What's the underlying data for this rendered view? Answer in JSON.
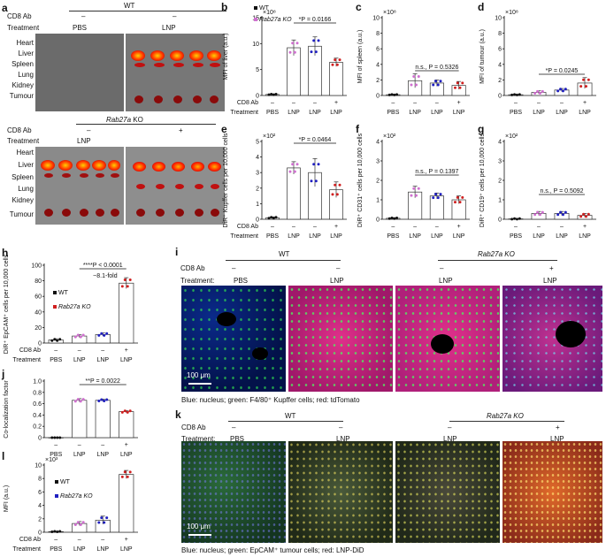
{
  "panels": {
    "a": "a",
    "b": "b",
    "c": "c",
    "d": "d",
    "e": "e",
    "f": "f",
    "g": "g",
    "h": "h",
    "i": "i",
    "j": "j",
    "k": "k",
    "l": "l"
  },
  "a": {
    "cd8_label": "CD8 Ab",
    "treatment_label": "Treatment",
    "wt": "WT",
    "ko": "Rab27a KO",
    "top_cd8": [
      "–",
      "–"
    ],
    "top_treat": [
      "PBS",
      "LNP"
    ],
    "bottom_cd8": [
      "–",
      "+"
    ],
    "bottom_treat": [
      "LNP"
    ],
    "organs": [
      "Heart",
      "Liver",
      "Spleen",
      "Lung",
      "Kidney",
      "Tumour"
    ]
  },
  "legend": {
    "wt": "WT",
    "ko": "Rab27a KO"
  },
  "small_chart_data": [
    {
      "panel": "b",
      "type": "bar",
      "ylabel": "MFI of liver (a.u.)",
      "exp": "×10⁸",
      "ylim": [
        0,
        15
      ],
      "yticks": [
        "0",
        "5",
        "10",
        "15"
      ],
      "categories": [
        "PBS",
        "LNP",
        "LNP",
        "LNP"
      ],
      "cd8": [
        "–",
        "–",
        "–",
        "+"
      ],
      "values": [
        0.2,
        9.2,
        9.5,
        6.4
      ],
      "errors": [
        0.1,
        1.5,
        1.8,
        0.8
      ],
      "stat": "*P = 0.0166",
      "colors": [
        "#111111",
        "#d070d0",
        "#2020c0",
        "#d02020"
      ]
    },
    {
      "panel": "c",
      "type": "bar",
      "ylabel": "MFI of spleen (a.u.)",
      "exp": "×10⁸",
      "ylim": [
        0,
        10
      ],
      "yticks": [
        "0",
        "2",
        "4",
        "6",
        "8",
        "10"
      ],
      "categories": [
        "PBS",
        "LNP",
        "LNP",
        "LNP"
      ],
      "cd8": [
        "–",
        "–",
        "–",
        "+"
      ],
      "values": [
        0.1,
        1.9,
        1.6,
        1.3
      ],
      "errors": [
        0.05,
        0.9,
        0.4,
        0.5
      ],
      "stat": "n.s., P = 0.5326",
      "colors": [
        "#111111",
        "#d070d0",
        "#2020c0",
        "#d02020"
      ]
    },
    {
      "panel": "d",
      "type": "bar",
      "ylabel": "MFI of tumour (a.u.)",
      "exp": "×10⁸",
      "ylim": [
        0,
        10
      ],
      "yticks": [
        "0",
        "2",
        "4",
        "6",
        "8",
        "10"
      ],
      "categories": [
        "PBS",
        "LNP",
        "LNP",
        "LNP"
      ],
      "cd8": [
        "–",
        "–",
        "–",
        "+"
      ],
      "values": [
        0.1,
        0.4,
        0.7,
        1.6
      ],
      "errors": [
        0.05,
        0.2,
        0.2,
        0.7
      ],
      "stat": "*P = 0.0245",
      "colors": [
        "#111111",
        "#d070d0",
        "#2020c0",
        "#d02020"
      ]
    },
    {
      "panel": "e",
      "type": "bar",
      "ylabel": "DiR⁺ Kupffer cells per 10,000 cells",
      "exp": "×10²",
      "ylim": [
        0,
        5
      ],
      "yticks": [
        "0",
        "1",
        "2",
        "3",
        "4",
        "5"
      ],
      "categories": [
        "PBS",
        "LNP",
        "LNP",
        "LNP"
      ],
      "cd8": [
        "–",
        "–",
        "–",
        "+"
      ],
      "values": [
        0.1,
        3.3,
        3.0,
        1.9
      ],
      "errors": [
        0.05,
        0.4,
        0.9,
        0.5
      ],
      "stat": "*P = 0.0464",
      "colors": [
        "#111111",
        "#d070d0",
        "#2020c0",
        "#d02020"
      ]
    },
    {
      "panel": "f",
      "type": "bar",
      "ylabel": "DiR⁺ CD31⁺ cells per 10,000 cells",
      "exp": "×10²",
      "ylim": [
        0,
        4
      ],
      "yticks": [
        "0",
        "1",
        "2",
        "3",
        "4"
      ],
      "categories": [
        "PBS",
        "LNP",
        "LNP",
        "LNP"
      ],
      "cd8": [
        "–",
        "–",
        "–",
        "+"
      ],
      "values": [
        0.05,
        1.4,
        1.2,
        1.0
      ],
      "errors": [
        0.03,
        0.3,
        0.15,
        0.2
      ],
      "stat": "n.s., P = 0.1397",
      "colors": [
        "#111111",
        "#d070d0",
        "#2020c0",
        "#d02020"
      ]
    },
    {
      "panel": "g",
      "type": "bar",
      "ylabel": "DiR⁺ CD19⁺ cells per 10,000 cells",
      "exp": "×10²",
      "ylim": [
        0,
        4
      ],
      "yticks": [
        "0",
        "1",
        "2",
        "3",
        "4"
      ],
      "categories": [
        "PBS",
        "LNP",
        "LNP",
        "LNP"
      ],
      "cd8": [
        "–",
        "–",
        "–",
        "+"
      ],
      "values": [
        0.02,
        0.3,
        0.3,
        0.2
      ],
      "errors": [
        0.02,
        0.1,
        0.1,
        0.1
      ],
      "stat": "n.s., P = 0.5092",
      "colors": [
        "#111111",
        "#d070d0",
        "#2020c0",
        "#d02020"
      ]
    }
  ],
  "chart_data": [
    {
      "panel": "h",
      "type": "bar",
      "ylabel": "DiR⁺ EpCAM⁺ cells per 10,000 cells",
      "ylim": [
        0,
        100
      ],
      "yticks": [
        "0",
        "20",
        "40",
        "60",
        "80",
        "100"
      ],
      "categories": [
        "PBS",
        "LNP",
        "LNP",
        "LNP"
      ],
      "cd8": [
        "–",
        "–",
        "–",
        "+"
      ],
      "values": [
        4,
        9,
        11,
        77
      ],
      "errors": [
        1.5,
        2,
        2,
        7
      ],
      "stat": "****P < 0.0001",
      "fold": "~8.1-fold",
      "colors": [
        "#111111",
        "#d070d0",
        "#2020c0",
        "#d02020"
      ]
    },
    {
      "panel": "j",
      "type": "bar",
      "ylabel": "Co-localization factor",
      "ylim": [
        0,
        1.0
      ],
      "yticks": [
        "0",
        "0.2",
        "0.4",
        "0.6",
        "0.8",
        "1.0"
      ],
      "categories": [
        "PBS",
        "LNP",
        "LNP",
        "LNP"
      ],
      "cd8": [
        "–",
        "–",
        "–",
        "+"
      ],
      "values": [
        0,
        0.66,
        0.66,
        0.46
      ],
      "errors": [
        0,
        0.03,
        0.02,
        0.02
      ],
      "stat": "**P = 0.0022",
      "colors": [
        "#111111",
        "#d070d0",
        "#2020c0",
        "#d02020"
      ]
    },
    {
      "panel": "l",
      "type": "bar",
      "ylabel": "MFI (a.u.)",
      "exp": "×10³",
      "ylim": [
        0,
        10
      ],
      "yticks": [
        "0",
        "2",
        "4",
        "6",
        "8",
        "10"
      ],
      "categories": [
        "PBS",
        "LNP",
        "LNP",
        "LNP"
      ],
      "cd8": [
        "–",
        "–",
        "–",
        "+"
      ],
      "values": [
        0.1,
        1.3,
        1.8,
        8.6
      ],
      "errors": [
        0.05,
        0.3,
        0.6,
        0.6
      ],
      "colors": [
        "#111111",
        "#d070d0",
        "#2020c0",
        "#d02020"
      ]
    }
  ],
  "i": {
    "cd8_label": "CD8 Ab",
    "treatment_label": "Treatment:",
    "wt": "WT",
    "ko": "Rab27a KO",
    "cd8": [
      "–",
      "–",
      "–",
      "+"
    ],
    "treat": [
      "PBS",
      "LNP",
      "LNP",
      "LNP"
    ],
    "scale": "100 μm",
    "caption": "Blue: nucleus; green: F4/80⁺ Kupffer cells; red: tdTomato"
  },
  "k": {
    "cd8_label": "CD8 Ab",
    "treatment_label": "Treatment:",
    "wt": "WT",
    "ko": "Rab27a KO",
    "cd8": [
      "–",
      "–",
      "–",
      "+"
    ],
    "treat": [
      "PBS",
      "LNP",
      "LNP",
      "LNP"
    ],
    "scale": "100 μm",
    "caption": "Blue: nucleus; green: EpCAM⁺ tumour cells; red: LNP-DiD"
  },
  "axis": {
    "cd8": "CD8 Ab",
    "treatment": "Treatment"
  }
}
